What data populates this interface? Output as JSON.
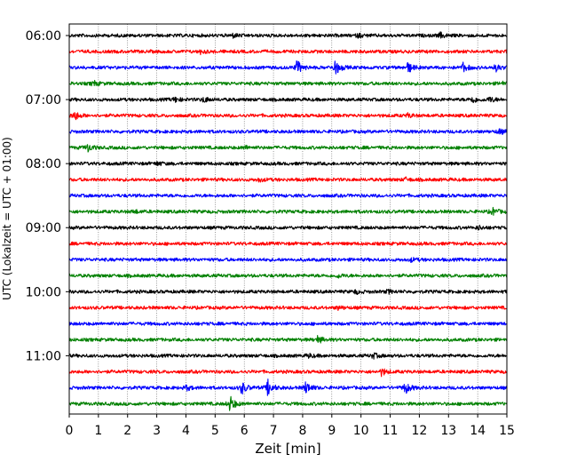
{
  "chart_data": {
    "type": "line",
    "xlabel": "Zeit  [min]",
    "ylabel": "UTC (Lokalzeit = UTC + 01:00)",
    "xlim": [
      0,
      15
    ],
    "x_ticks": [
      0,
      1,
      2,
      3,
      4,
      5,
      6,
      7,
      8,
      9,
      10,
      11,
      12,
      13,
      14,
      15
    ],
    "grid": true,
    "legend": "none",
    "y_ticks": [
      {
        "label": "06:00",
        "trace": 0
      },
      {
        "label": "07:00",
        "trace": 4
      },
      {
        "label": "08:00",
        "trace": 8
      },
      {
        "label": "09:00",
        "trace": 12
      },
      {
        "label": "10:00",
        "trace": 16
      },
      {
        "label": "11:00",
        "trace": 20
      }
    ],
    "series_colors": [
      "#000000",
      "#ff0000",
      "#0000ff",
      "#008000"
    ],
    "traces": [
      {
        "start": "06:00",
        "color": "#000000",
        "events": [
          [
            5.6,
            2
          ],
          [
            9.9,
            2
          ],
          [
            12.7,
            3
          ]
        ]
      },
      {
        "start": "06:15",
        "color": "#ff0000",
        "events": [
          [
            4.5,
            2
          ]
        ]
      },
      {
        "start": "06:30",
        "color": "#0000ff",
        "events": [
          [
            7.8,
            8
          ],
          [
            9.1,
            9
          ],
          [
            11.6,
            6
          ],
          [
            13.5,
            5
          ],
          [
            14.6,
            4
          ]
        ]
      },
      {
        "start": "06:45",
        "color": "#008000",
        "events": [
          [
            0.8,
            3
          ],
          [
            14.8,
            2
          ]
        ]
      },
      {
        "start": "07:00",
        "color": "#000000",
        "events": [
          [
            3.6,
            3
          ],
          [
            4.6,
            3
          ],
          [
            13.8,
            4
          ],
          [
            14.4,
            3
          ]
        ]
      },
      {
        "start": "07:15",
        "color": "#ff0000",
        "events": [
          [
            0.15,
            6
          ],
          [
            11.6,
            2
          ]
        ]
      },
      {
        "start": "07:30",
        "color": "#0000ff",
        "events": [
          [
            14.7,
            3
          ]
        ]
      },
      {
        "start": "07:45",
        "color": "#008000",
        "events": [
          [
            0.6,
            5
          ],
          [
            6.0,
            2
          ]
        ]
      },
      {
        "start": "08:00",
        "color": "#000000",
        "events": [
          [
            3.0,
            2
          ]
        ]
      },
      {
        "start": "08:15",
        "color": "#ff0000",
        "events": [
          [
            6.5,
            2
          ],
          [
            11.5,
            2
          ]
        ]
      },
      {
        "start": "08:30",
        "color": "#0000ff",
        "events": []
      },
      {
        "start": "08:45",
        "color": "#008000",
        "events": [
          [
            2.2,
            2
          ],
          [
            14.5,
            4
          ]
        ]
      },
      {
        "start": "09:00",
        "color": "#000000",
        "events": [
          [
            14.0,
            2
          ]
        ]
      },
      {
        "start": "09:15",
        "color": "#ff0000",
        "events": []
      },
      {
        "start": "09:30",
        "color": "#0000ff",
        "events": [
          [
            11.7,
            2
          ]
        ]
      },
      {
        "start": "09:45",
        "color": "#008000",
        "events": [
          [
            9.2,
            2
          ]
        ]
      },
      {
        "start": "10:00",
        "color": "#000000",
        "events": [
          [
            9.8,
            2
          ],
          [
            10.9,
            2
          ]
        ]
      },
      {
        "start": "10:15",
        "color": "#ff0000",
        "events": [
          [
            9.2,
            2
          ]
        ]
      },
      {
        "start": "10:30",
        "color": "#0000ff",
        "events": []
      },
      {
        "start": "10:45",
        "color": "#008000",
        "events": [
          [
            8.5,
            4
          ]
        ]
      },
      {
        "start": "11:00",
        "color": "#000000",
        "events": [
          [
            8.2,
            2
          ],
          [
            10.4,
            3
          ]
        ]
      },
      {
        "start": "11:15",
        "color": "#ff0000",
        "events": [
          [
            10.7,
            4
          ]
        ]
      },
      {
        "start": "11:30",
        "color": "#0000ff",
        "events": [
          [
            4.0,
            3
          ],
          [
            5.9,
            7
          ],
          [
            6.8,
            9
          ],
          [
            8.1,
            7
          ],
          [
            11.5,
            7
          ]
        ]
      },
      {
        "start": "11:45",
        "color": "#008000",
        "events": [
          [
            5.5,
            9
          ]
        ]
      }
    ]
  }
}
